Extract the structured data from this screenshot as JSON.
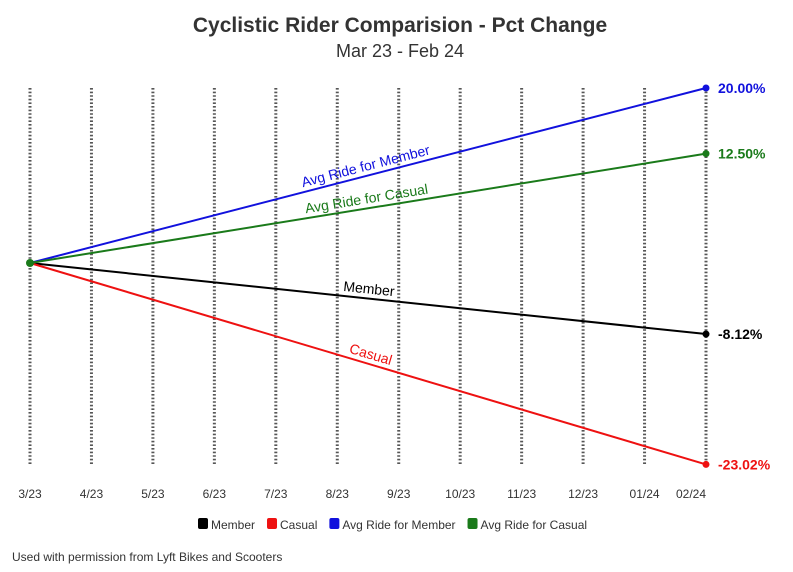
{
  "chart_data": {
    "type": "line",
    "title": "Cyclistic Rider Comparision - Pct Change",
    "subtitle": "Mar 23 - Feb 24",
    "categories": [
      "3/23",
      "4/23",
      "5/23",
      "6/23",
      "7/23",
      "8/23",
      "9/23",
      "10/23",
      "11/23",
      "12/23",
      "01/24",
      "02/24"
    ],
    "xlabel": "",
    "ylabel": "",
    "ylim": [
      -25,
      22
    ],
    "grid": "vertical dotted",
    "legend_position": "bottom",
    "series": [
      {
        "name": "Member",
        "start": 0,
        "end": -8.12,
        "end_label": "-8.12%",
        "color": "#000000"
      },
      {
        "name": "Casual",
        "start": 0,
        "end": -23.02,
        "end_label": "-23.02%",
        "color": "#ee1111"
      },
      {
        "name": "Avg Ride for Member",
        "start": 0,
        "end": 20.0,
        "end_label": "20.00%",
        "color": "#1111dd"
      },
      {
        "name": "Avg Ride for Casual",
        "start": 0,
        "end": 12.5,
        "end_label": "12.50%",
        "color": "#1a7a1a"
      }
    ]
  },
  "footer": "Used with permission from Lyft Bikes and Scooters"
}
